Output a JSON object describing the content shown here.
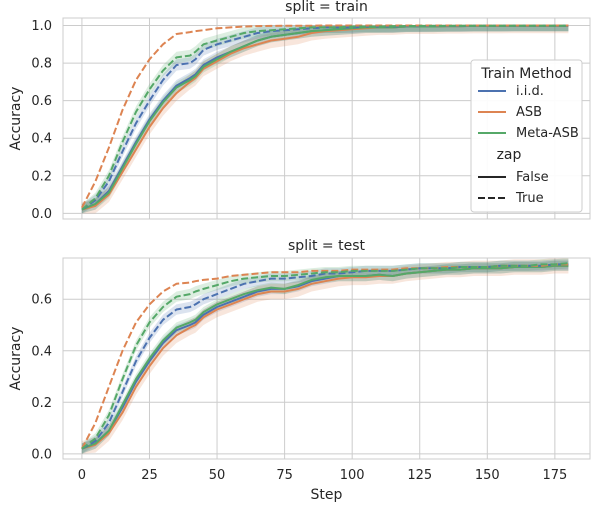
{
  "chart_data": {
    "type": "line",
    "xlabel": "Step",
    "ylabel": "Accuracy",
    "x": [
      0,
      5,
      10,
      15,
      20,
      25,
      30,
      35,
      40,
      42,
      45,
      50,
      55,
      60,
      65,
      70,
      75,
      80,
      85,
      90,
      95,
      100,
      105,
      110,
      115,
      120,
      125,
      130,
      135,
      140,
      145,
      150,
      155,
      160,
      165,
      170,
      175,
      180
    ],
    "xticks": [
      "0",
      "25",
      "50",
      "75",
      "100",
      "125",
      "150",
      "175"
    ],
    "xlim": [
      -7,
      188
    ],
    "grid": true,
    "legend": {
      "title": "Train Method",
      "methods": [
        {
          "name": "i.i.d.",
          "color": "#4c72b0"
        },
        {
          "name": "ASB",
          "color": "#dd8452"
        },
        {
          "name": "Meta-ASB",
          "color": "#55a868"
        }
      ],
      "style_title": "zap",
      "styles": [
        {
          "name": "False",
          "dash": "solid"
        },
        {
          "name": "True",
          "dash": "dashed"
        }
      ],
      "placement": "right"
    },
    "panels": [
      {
        "title": "split = train",
        "ylim": [
          -0.03,
          1.04
        ],
        "yticks": [
          "0.0",
          "0.2",
          "0.4",
          "0.6",
          "0.8",
          "1.0"
        ],
        "ytick_values": [
          0.0,
          0.2,
          0.4,
          0.6,
          0.8,
          1.0
        ],
        "series": [
          {
            "method": "i.i.d.",
            "zap": "False",
            "band": 0.03,
            "values": [
              0.02,
              0.05,
              0.12,
              0.25,
              0.38,
              0.5,
              0.6,
              0.68,
              0.72,
              0.74,
              0.79,
              0.83,
              0.86,
              0.89,
              0.92,
              0.94,
              0.95,
              0.96,
              0.97,
              0.975,
              0.98,
              0.985,
              0.99,
              0.99,
              0.99,
              0.995,
              0.995,
              0.995,
              0.997,
              0.997,
              0.998,
              0.998,
              0.998,
              0.999,
              0.999,
              0.999,
              0.999,
              0.999
            ]
          },
          {
            "method": "ASB",
            "zap": "False",
            "band": 0.04,
            "values": [
              0.02,
              0.04,
              0.1,
              0.22,
              0.34,
              0.46,
              0.56,
              0.64,
              0.7,
              0.72,
              0.77,
              0.81,
              0.85,
              0.88,
              0.9,
              0.92,
              0.93,
              0.94,
              0.96,
              0.97,
              0.975,
              0.98,
              0.985,
              0.99,
              0.99,
              0.995,
              0.995,
              0.995,
              0.997,
              0.997,
              0.998,
              0.998,
              0.998,
              0.999,
              0.999,
              0.999,
              0.999,
              0.999
            ]
          },
          {
            "method": "Meta-ASB",
            "zap": "False",
            "band": 0.03,
            "values": [
              0.02,
              0.05,
              0.11,
              0.24,
              0.37,
              0.49,
              0.59,
              0.67,
              0.71,
              0.73,
              0.78,
              0.82,
              0.86,
              0.89,
              0.92,
              0.94,
              0.95,
              0.96,
              0.97,
              0.975,
              0.98,
              0.985,
              0.99,
              0.99,
              0.99,
              0.995,
              0.995,
              0.995,
              0.997,
              0.997,
              0.998,
              0.998,
              0.998,
              0.999,
              0.999,
              0.999,
              0.999,
              0.999
            ]
          },
          {
            "method": "i.i.d.",
            "zap": "True",
            "band": 0.03,
            "values": [
              0.02,
              0.07,
              0.17,
              0.33,
              0.48,
              0.6,
              0.71,
              0.79,
              0.8,
              0.82,
              0.87,
              0.9,
              0.92,
              0.94,
              0.96,
              0.97,
              0.975,
              0.98,
              0.985,
              0.99,
              0.99,
              0.99,
              0.995,
              0.995,
              0.995,
              0.997,
              0.997,
              0.998,
              0.998,
              0.998,
              0.999,
              0.999,
              0.999,
              0.999,
              0.999,
              0.999,
              0.999,
              0.999
            ]
          },
          {
            "method": "ASB",
            "zap": "True",
            "band": 0.0,
            "values": [
              0.03,
              0.17,
              0.35,
              0.55,
              0.71,
              0.82,
              0.9,
              0.955,
              0.965,
              0.97,
              0.975,
              0.985,
              0.99,
              0.995,
              0.997,
              0.998,
              0.999,
              0.999,
              0.999,
              1.0,
              1.0,
              1.0,
              1.0,
              1.0,
              1.0,
              1.0,
              1.0,
              1.0,
              1.0,
              1.0,
              1.0,
              1.0,
              1.0,
              1.0,
              1.0,
              1.0,
              1.0,
              1.0
            ]
          },
          {
            "method": "Meta-ASB",
            "zap": "True",
            "band": 0.03,
            "values": [
              0.02,
              0.08,
              0.2,
              0.38,
              0.54,
              0.66,
              0.76,
              0.83,
              0.84,
              0.86,
              0.9,
              0.92,
              0.94,
              0.96,
              0.97,
              0.975,
              0.98,
              0.985,
              0.99,
              0.99,
              0.99,
              0.995,
              0.995,
              0.995,
              0.997,
              0.997,
              0.998,
              0.998,
              0.998,
              0.999,
              0.999,
              0.999,
              0.999,
              0.999,
              0.999,
              0.999,
              0.999,
              0.999
            ]
          }
        ]
      },
      {
        "title": "split = test",
        "ylim": [
          -0.02,
          0.76
        ],
        "yticks": [
          "0.0",
          "0.2",
          "0.4",
          "0.6"
        ],
        "ytick_values": [
          0.0,
          0.2,
          0.4,
          0.6
        ],
        "series": [
          {
            "method": "i.i.d.",
            "zap": "False",
            "band": 0.02,
            "values": [
              0.02,
              0.04,
              0.09,
              0.18,
              0.28,
              0.36,
              0.43,
              0.48,
              0.5,
              0.51,
              0.54,
              0.57,
              0.59,
              0.61,
              0.63,
              0.64,
              0.64,
              0.65,
              0.67,
              0.68,
              0.69,
              0.69,
              0.69,
              0.695,
              0.69,
              0.7,
              0.705,
              0.71,
              0.715,
              0.715,
              0.72,
              0.72,
              0.72,
              0.725,
              0.725,
              0.725,
              0.73,
              0.73
            ]
          },
          {
            "method": "ASB",
            "zap": "False",
            "band": 0.03,
            "values": [
              0.02,
              0.035,
              0.08,
              0.16,
              0.26,
              0.34,
              0.41,
              0.46,
              0.49,
              0.5,
              0.53,
              0.56,
              0.58,
              0.6,
              0.62,
              0.63,
              0.63,
              0.64,
              0.66,
              0.67,
              0.68,
              0.685,
              0.685,
              0.69,
              0.69,
              0.7,
              0.705,
              0.71,
              0.715,
              0.715,
              0.72,
              0.72,
              0.72,
              0.725,
              0.725,
              0.725,
              0.73,
              0.73
            ]
          },
          {
            "method": "Meta-ASB",
            "zap": "False",
            "band": 0.02,
            "values": [
              0.02,
              0.04,
              0.09,
              0.19,
              0.29,
              0.37,
              0.44,
              0.49,
              0.51,
              0.52,
              0.55,
              0.58,
              0.6,
              0.62,
              0.635,
              0.645,
              0.64,
              0.655,
              0.675,
              0.685,
              0.69,
              0.69,
              0.69,
              0.695,
              0.69,
              0.7,
              0.705,
              0.71,
              0.715,
              0.715,
              0.72,
              0.72,
              0.72,
              0.725,
              0.725,
              0.725,
              0.73,
              0.73
            ]
          },
          {
            "method": "i.i.d.",
            "zap": "True",
            "band": 0.02,
            "values": [
              0.02,
              0.05,
              0.12,
              0.24,
              0.36,
              0.45,
              0.52,
              0.56,
              0.57,
              0.58,
              0.6,
              0.62,
              0.64,
              0.66,
              0.67,
              0.68,
              0.68,
              0.685,
              0.69,
              0.7,
              0.7,
              0.705,
              0.71,
              0.71,
              0.71,
              0.715,
              0.72,
              0.72,
              0.72,
              0.725,
              0.725,
              0.725,
              0.73,
              0.73,
              0.73,
              0.73,
              0.735,
              0.735
            ]
          },
          {
            "method": "ASB",
            "zap": "True",
            "band": 0.0,
            "values": [
              0.02,
              0.12,
              0.26,
              0.4,
              0.51,
              0.58,
              0.63,
              0.66,
              0.665,
              0.67,
              0.675,
              0.68,
              0.69,
              0.695,
              0.7,
              0.705,
              0.705,
              0.705,
              0.71,
              0.71,
              0.71,
              0.715,
              0.715,
              0.715,
              0.715,
              0.72,
              0.72,
              0.72,
              0.725,
              0.725,
              0.725,
              0.725,
              0.73,
              0.73,
              0.73,
              0.73,
              0.735,
              0.735
            ]
          },
          {
            "method": "Meta-ASB",
            "zap": "True",
            "band": 0.02,
            "values": [
              0.02,
              0.06,
              0.15,
              0.29,
              0.42,
              0.51,
              0.57,
              0.61,
              0.62,
              0.63,
              0.64,
              0.655,
              0.67,
              0.68,
              0.685,
              0.69,
              0.69,
              0.695,
              0.7,
              0.705,
              0.705,
              0.71,
              0.71,
              0.71,
              0.71,
              0.715,
              0.72,
              0.72,
              0.72,
              0.725,
              0.725,
              0.725,
              0.73,
              0.73,
              0.73,
              0.735,
              0.735,
              0.74
            ]
          }
        ]
      }
    ]
  }
}
